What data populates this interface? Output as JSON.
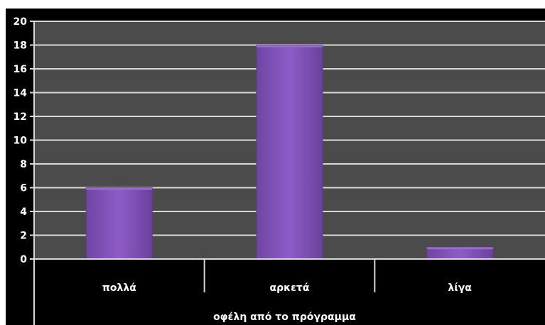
{
  "chart_data": {
    "type": "bar",
    "categories": [
      "πολλά",
      "αρκετά",
      "λίγα"
    ],
    "values": [
      6,
      18,
      1
    ],
    "title": "",
    "xlabel": "οφέλη από το πρόγραμμα",
    "ylabel": "",
    "ylim": [
      0,
      20
    ],
    "yticks": [
      "0",
      "2",
      "4",
      "6",
      "8",
      "10",
      "12",
      "14",
      "16",
      "18",
      "20"
    ],
    "grid": true,
    "legend": "none",
    "colors": {
      "bar": "#7e4fb4",
      "bar_light": "#9a6bd0",
      "plot_background": "#4b4b4b",
      "page_background": "#000000",
      "gridline": "#d9d9d9",
      "text": "#ffffff"
    }
  }
}
